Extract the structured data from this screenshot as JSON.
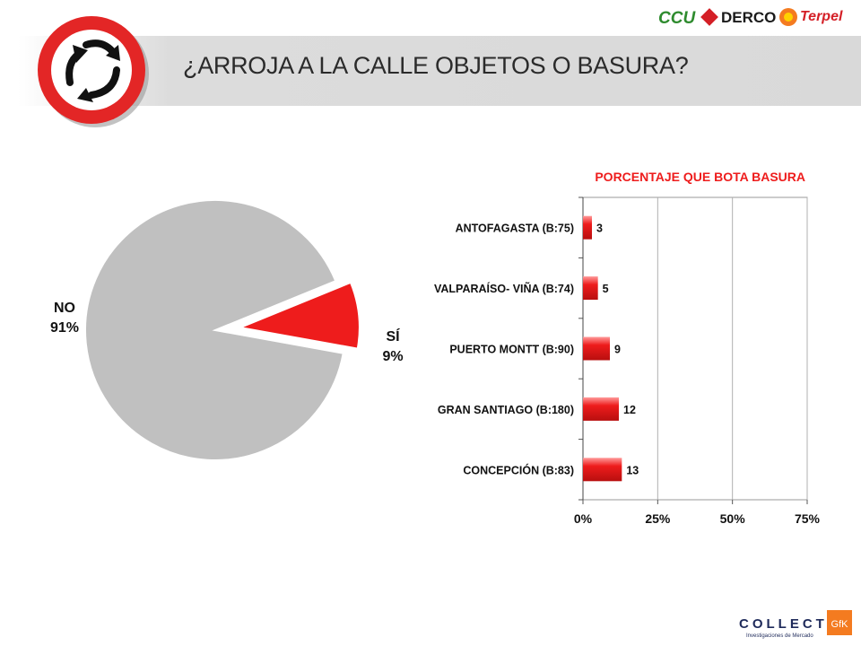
{
  "header": {
    "title": "¿ARROJA A LA CALLE OBJETOS O BASURA?",
    "sponsors": [
      "CCU",
      "DERCO",
      "Terpel"
    ],
    "footer_logo": "COLLECT",
    "footer_logo_subtitle": "Investigaciones de Mercado",
    "footer_badge": "GfK"
  },
  "colors": {
    "accent_red": "#ee1c1c",
    "pie_no": "#c0c0c0",
    "sign_ring": "#e32626",
    "ccu_green": "#2e8b2e",
    "derco_red": "#d41f26",
    "terpel_orange": "#f47b20",
    "title_text": "#2b2b2b"
  },
  "icons": [
    "no-littering-sign-icon",
    "recycle-arrows-icon"
  ],
  "chart_data": [
    {
      "type": "pie",
      "slices": [
        {
          "label": "NO",
          "value": 91,
          "value_label": "91%",
          "color": "#c0c0c0",
          "exploded": false
        },
        {
          "label": "SÍ",
          "value": 9,
          "value_label": "9%",
          "color": "#ee1c1c",
          "exploded": true
        }
      ]
    },
    {
      "type": "bar",
      "orientation": "horizontal",
      "title": "PORCENTAJE QUE BOTA BASURA",
      "categories": [
        "ANTOFAGASTA (B:75)",
        "VALPARAÍSO- VIÑA (B:74)",
        "PUERTO MONTT (B:90)",
        "GRAN SANTIAGO (B:180)",
        "CONCEPCIÓN (B:83)"
      ],
      "values": [
        3,
        5,
        9,
        12,
        13
      ],
      "xlim": [
        0,
        75
      ],
      "xticks": [
        0,
        25,
        50,
        75
      ],
      "xtick_labels": [
        "0%",
        "25%",
        "50%",
        "75%"
      ],
      "grid": true,
      "bar_color": "#ee1c1c"
    }
  ]
}
